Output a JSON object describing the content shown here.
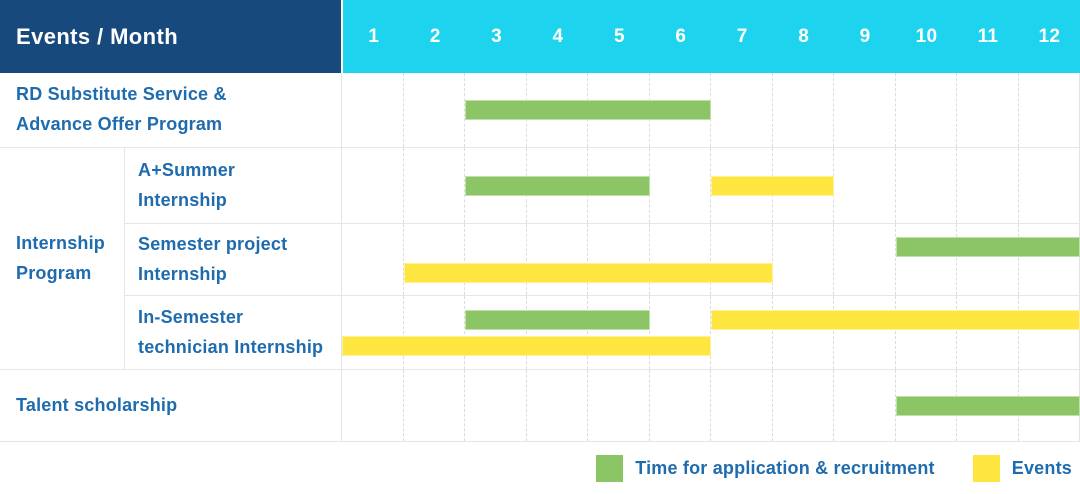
{
  "header": {
    "title": "Events / Month"
  },
  "colors": {
    "header_navy": "#17497D",
    "month_cyan": "#1ED3EE",
    "label_blue": "#1E6BAE",
    "recruitment_green": "#8BC566",
    "events_yellow": "#FFE53F",
    "grid_line": "#E6E6E6"
  },
  "chart_data": {
    "type": "gantt",
    "title": "Events / Month",
    "x_unit": "month",
    "x_range": [
      1,
      12
    ],
    "months": [
      "1",
      "2",
      "3",
      "4",
      "5",
      "6",
      "7",
      "8",
      "9",
      "10",
      "11",
      "12"
    ],
    "grid": "dashed-vertical-month-lines",
    "legend_position": "bottom-right",
    "rows": [
      {
        "label": "RD Substitute Service &\nAdvance Offer Program",
        "bars": [
          {
            "series": "Time for application & recruitment",
            "start": 3,
            "end": 6,
            "line": "center"
          }
        ]
      },
      {
        "label": "Internship\nProgram",
        "children": [
          {
            "label": "A+Summer\nInternship",
            "bars": [
              {
                "series": "Time for application & recruitment",
                "start": 3,
                "end": 5,
                "line": "center"
              },
              {
                "series": "Events",
                "start": 7,
                "end": 8,
                "line": "center"
              }
            ]
          },
          {
            "label": "Semester project\nInternship",
            "bars": [
              {
                "series": "Time for application & recruitment",
                "start": 10,
                "end": 12,
                "line": "top"
              },
              {
                "series": "Events",
                "start": 2,
                "end": 7,
                "line": "bottom"
              }
            ]
          },
          {
            "label": "In-Semester\ntechnician Internship",
            "bars": [
              {
                "series": "Time for application & recruitment",
                "start": 3,
                "end": 5,
                "line": "top"
              },
              {
                "series": "Events",
                "start": 7,
                "end": 12,
                "line": "top"
              },
              {
                "series": "Events",
                "start": 1,
                "end": 6,
                "line": "bottom"
              }
            ]
          }
        ]
      },
      {
        "label": "Talent scholarship",
        "bars": [
          {
            "series": "Time for application & recruitment",
            "start": 10,
            "end": 12,
            "line": "center"
          }
        ]
      }
    ],
    "legend": [
      {
        "label": "Time for application & recruitment",
        "color": "#8BC566"
      },
      {
        "label": "Events",
        "color": "#FFE53F"
      }
    ]
  }
}
